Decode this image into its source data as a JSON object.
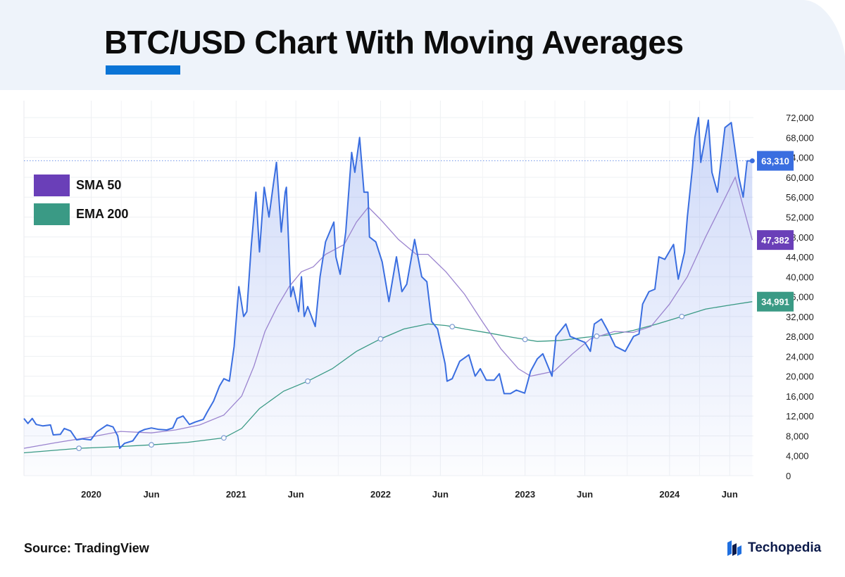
{
  "header": {
    "title": "BTC/USD Chart With Moving Averages"
  },
  "footer": {
    "source": "Source: TradingView",
    "brand": "Techopedia"
  },
  "colors": {
    "accent": "#0a74d6",
    "header_bg": "#eef3fa",
    "price": "#3a6ee0",
    "sma": "#6a3fb8",
    "ema": "#3a9a85",
    "price_badge": "#3a6ee0",
    "sma_badge": "#6a3fb8",
    "ema_badge": "#3a9a85"
  },
  "legend": [
    {
      "label": "SMA 50",
      "color": "#6a3fb8"
    },
    {
      "label": "EMA 200",
      "color": "#3a9a85"
    }
  ],
  "brand_icon": "techopedia-logo-icon",
  "chart_data": {
    "type": "line",
    "y_range": [
      0,
      74000
    ],
    "y_ticks": [
      "72,000",
      "68,000",
      "64,000",
      "60,000",
      "56,000",
      "52,000",
      "48,000",
      "44,000",
      "40,000",
      "36,000",
      "32,000",
      "28,000",
      "24,000",
      "20,000",
      "16,000",
      "12,000",
      "8,000",
      "4,000",
      "0"
    ],
    "x_range": [
      "2019-07-15",
      "2024-07-31"
    ],
    "x_ticks": [
      {
        "date": "2020-01-01",
        "label": "2020"
      },
      {
        "date": "2020-06-01",
        "label": "Jun"
      },
      {
        "date": "2021-01-01",
        "label": "2021"
      },
      {
        "date": "2021-06-01",
        "label": "Jun"
      },
      {
        "date": "2022-01-01",
        "label": "2022"
      },
      {
        "date": "2022-06-01",
        "label": "Jun"
      },
      {
        "date": "2023-01-01",
        "label": "2023"
      },
      {
        "date": "2023-06-01",
        "label": "Jun"
      },
      {
        "date": "2024-01-01",
        "label": "2024"
      },
      {
        "date": "2024-06-01",
        "label": "Jun"
      }
    ],
    "grid": true,
    "legend_position": "left",
    "last_value_labels": [
      {
        "series": "price",
        "value": "63,310"
      },
      {
        "series": "sma",
        "value": "47,382"
      },
      {
        "series": "ema",
        "value": "34,991"
      }
    ],
    "series": [
      {
        "id": "price",
        "values": [
          [
            "2019-07-15",
            11500
          ],
          [
            "2019-07-25",
            10500
          ],
          [
            "2019-08-05",
            11500
          ],
          [
            "2019-08-15",
            10300
          ],
          [
            "2019-09-01",
            10000
          ],
          [
            "2019-09-20",
            10200
          ],
          [
            "2019-09-27",
            8200
          ],
          [
            "2019-10-15",
            8300
          ],
          [
            "2019-10-25",
            9500
          ],
          [
            "2019-11-10",
            9000
          ],
          [
            "2019-11-25",
            7200
          ],
          [
            "2019-12-10",
            7400
          ],
          [
            "2019-12-31",
            7200
          ],
          [
            "2020-01-15",
            8800
          ],
          [
            "2020-02-10",
            10200
          ],
          [
            "2020-02-25",
            9800
          ],
          [
            "2020-03-08",
            8000
          ],
          [
            "2020-03-13",
            5500
          ],
          [
            "2020-03-25",
            6500
          ],
          [
            "2020-04-15",
            7000
          ],
          [
            "2020-05-01",
            8800
          ],
          [
            "2020-05-15",
            9300
          ],
          [
            "2020-06-01",
            9600
          ],
          [
            "2020-06-20",
            9300
          ],
          [
            "2020-07-10",
            9200
          ],
          [
            "2020-07-25",
            9600
          ],
          [
            "2020-08-05",
            11500
          ],
          [
            "2020-08-20",
            12000
          ],
          [
            "2020-09-05",
            10300
          ],
          [
            "2020-09-20",
            10800
          ],
          [
            "2020-10-10",
            11300
          ],
          [
            "2020-10-20",
            12800
          ],
          [
            "2020-11-05",
            15000
          ],
          [
            "2020-11-20",
            18000
          ],
          [
            "2020-12-01",
            19500
          ],
          [
            "2020-12-15",
            19000
          ],
          [
            "2020-12-27",
            26000
          ],
          [
            "2021-01-08",
            38000
          ],
          [
            "2021-01-20",
            32000
          ],
          [
            "2021-01-28",
            33000
          ],
          [
            "2021-02-08",
            46000
          ],
          [
            "2021-02-20",
            57000
          ],
          [
            "2021-03-01",
            45000
          ],
          [
            "2021-03-13",
            58000
          ],
          [
            "2021-03-25",
            52000
          ],
          [
            "2021-04-05",
            58500
          ],
          [
            "2021-04-13",
            63000
          ],
          [
            "2021-04-25",
            49000
          ],
          [
            "2021-05-05",
            57000
          ],
          [
            "2021-05-08",
            58000
          ],
          [
            "2021-05-19",
            36000
          ],
          [
            "2021-05-25",
            38000
          ],
          [
            "2021-06-08",
            33000
          ],
          [
            "2021-06-15",
            40000
          ],
          [
            "2021-06-22",
            32000
          ],
          [
            "2021-07-01",
            34000
          ],
          [
            "2021-07-20",
            30000
          ],
          [
            "2021-08-01",
            40000
          ],
          [
            "2021-08-15",
            47000
          ],
          [
            "2021-09-05",
            51000
          ],
          [
            "2021-09-10",
            44000
          ],
          [
            "2021-09-21",
            40500
          ],
          [
            "2021-10-05",
            49000
          ],
          [
            "2021-10-20",
            65000
          ],
          [
            "2021-10-28",
            61000
          ],
          [
            "2021-11-09",
            68000
          ],
          [
            "2021-11-20",
            57000
          ],
          [
            "2021-11-30",
            57000
          ],
          [
            "2021-12-04",
            48000
          ],
          [
            "2021-12-20",
            47000
          ],
          [
            "2022-01-05",
            43000
          ],
          [
            "2022-01-22",
            35000
          ],
          [
            "2022-02-10",
            44000
          ],
          [
            "2022-02-24",
            37000
          ],
          [
            "2022-03-08",
            38500
          ],
          [
            "2022-03-28",
            47500
          ],
          [
            "2022-04-15",
            40000
          ],
          [
            "2022-04-28",
            39000
          ],
          [
            "2022-05-10",
            31000
          ],
          [
            "2022-05-25",
            29500
          ],
          [
            "2022-06-13",
            22500
          ],
          [
            "2022-06-18",
            19000
          ],
          [
            "2022-07-01",
            19500
          ],
          [
            "2022-07-20",
            23000
          ],
          [
            "2022-08-12",
            24300
          ],
          [
            "2022-08-28",
            20000
          ],
          [
            "2022-09-10",
            21500
          ],
          [
            "2022-09-25",
            19200
          ],
          [
            "2022-10-15",
            19200
          ],
          [
            "2022-10-28",
            20500
          ],
          [
            "2022-11-09",
            16500
          ],
          [
            "2022-11-25",
            16500
          ],
          [
            "2022-12-10",
            17200
          ],
          [
            "2022-12-31",
            16600
          ],
          [
            "2023-01-15",
            21000
          ],
          [
            "2023-02-01",
            23500
          ],
          [
            "2023-02-15",
            24500
          ],
          [
            "2023-03-10",
            20000
          ],
          [
            "2023-03-20",
            28000
          ],
          [
            "2023-04-14",
            30500
          ],
          [
            "2023-04-25",
            28000
          ],
          [
            "2023-05-10",
            27500
          ],
          [
            "2023-06-01",
            26800
          ],
          [
            "2023-06-15",
            25000
          ],
          [
            "2023-06-25",
            30500
          ],
          [
            "2023-07-13",
            31500
          ],
          [
            "2023-07-28",
            29300
          ],
          [
            "2023-08-17",
            26000
          ],
          [
            "2023-09-11",
            25000
          ],
          [
            "2023-10-02",
            28000
          ],
          [
            "2023-10-16",
            28500
          ],
          [
            "2023-10-25",
            34500
          ],
          [
            "2023-11-10",
            37000
          ],
          [
            "2023-11-25",
            37500
          ],
          [
            "2023-12-05",
            44000
          ],
          [
            "2023-12-20",
            43500
          ],
          [
            "2024-01-11",
            46500
          ],
          [
            "2024-01-23",
            39500
          ],
          [
            "2024-02-08",
            45000
          ],
          [
            "2024-02-15",
            52000
          ],
          [
            "2024-02-28",
            62000
          ],
          [
            "2024-03-05",
            68000
          ],
          [
            "2024-03-14",
            72000
          ],
          [
            "2024-03-20",
            63000
          ],
          [
            "2024-04-08",
            71500
          ],
          [
            "2024-04-17",
            61000
          ],
          [
            "2024-05-01",
            57000
          ],
          [
            "2024-05-20",
            70000
          ],
          [
            "2024-06-05",
            71000
          ],
          [
            "2024-06-24",
            60000
          ],
          [
            "2024-07-05",
            56000
          ],
          [
            "2024-07-15",
            63300
          ],
          [
            "2024-07-28",
            63310
          ]
        ]
      },
      {
        "id": "sma",
        "values": [
          [
            "2019-07-15",
            5500
          ],
          [
            "2019-10-01",
            6600
          ],
          [
            "2020-01-01",
            7800
          ],
          [
            "2020-03-15",
            8900
          ],
          [
            "2020-06-01",
            8600
          ],
          [
            "2020-08-01",
            9200
          ],
          [
            "2020-10-01",
            10200
          ],
          [
            "2020-12-01",
            12200
          ],
          [
            "2021-01-15",
            16000
          ],
          [
            "2021-02-15",
            22000
          ],
          [
            "2021-03-15",
            29000
          ],
          [
            "2021-04-15",
            34000
          ],
          [
            "2021-05-15",
            38000
          ],
          [
            "2021-06-15",
            41000
          ],
          [
            "2021-07-15",
            42000
          ],
          [
            "2021-08-15",
            44500
          ],
          [
            "2021-10-01",
            46500
          ],
          [
            "2021-11-01",
            51000
          ],
          [
            "2021-12-01",
            54000
          ],
          [
            "2022-01-01",
            51500
          ],
          [
            "2022-02-15",
            47500
          ],
          [
            "2022-04-01",
            44500
          ],
          [
            "2022-05-01",
            44500
          ],
          [
            "2022-06-15",
            41000
          ],
          [
            "2022-08-01",
            36500
          ],
          [
            "2022-09-15",
            31000
          ],
          [
            "2022-11-01",
            25500
          ],
          [
            "2022-12-15",
            21500
          ],
          [
            "2023-01-15",
            20000
          ],
          [
            "2023-03-15",
            21000
          ],
          [
            "2023-05-01",
            24500
          ],
          [
            "2023-06-15",
            27500
          ],
          [
            "2023-08-15",
            29000
          ],
          [
            "2023-10-01",
            28800
          ],
          [
            "2023-11-15",
            30000
          ],
          [
            "2024-01-01",
            34500
          ],
          [
            "2024-02-15",
            40000
          ],
          [
            "2024-04-01",
            48000
          ],
          [
            "2024-05-15",
            55000
          ],
          [
            "2024-06-15",
            60000
          ],
          [
            "2024-07-28",
            47382
          ]
        ]
      },
      {
        "id": "ema",
        "values": [
          [
            "2019-07-15",
            4600
          ],
          [
            "2019-12-01",
            5500
          ],
          [
            "2020-03-01",
            5800
          ],
          [
            "2020-06-01",
            6200
          ],
          [
            "2020-09-01",
            6700
          ],
          [
            "2020-12-01",
            7600
          ],
          [
            "2021-01-15",
            9500
          ],
          [
            "2021-03-01",
            13500
          ],
          [
            "2021-05-01",
            17000
          ],
          [
            "2021-07-01",
            19000
          ],
          [
            "2021-09-01",
            21500
          ],
          [
            "2021-11-01",
            25000
          ],
          [
            "2022-01-01",
            27500
          ],
          [
            "2022-03-01",
            29500
          ],
          [
            "2022-05-01",
            30500
          ],
          [
            "2022-06-15",
            30200
          ],
          [
            "2022-08-01",
            29500
          ],
          [
            "2022-10-01",
            28700
          ],
          [
            "2022-12-01",
            27800
          ],
          [
            "2023-02-01",
            27000
          ],
          [
            "2023-04-01",
            27200
          ],
          [
            "2023-06-01",
            27800
          ],
          [
            "2023-08-01",
            28300
          ],
          [
            "2023-10-01",
            29200
          ],
          [
            "2023-12-01",
            30500
          ],
          [
            "2024-02-01",
            32000
          ],
          [
            "2024-04-01",
            33500
          ],
          [
            "2024-06-01",
            34300
          ],
          [
            "2024-07-28",
            34991
          ]
        ]
      }
    ],
    "ema_markers": [
      "2019-12-01",
      "2020-06-01",
      "2020-12-01",
      "2021-07-01",
      "2022-01-01",
      "2022-07-01",
      "2023-01-01",
      "2023-07-01",
      "2024-02-01"
    ]
  }
}
